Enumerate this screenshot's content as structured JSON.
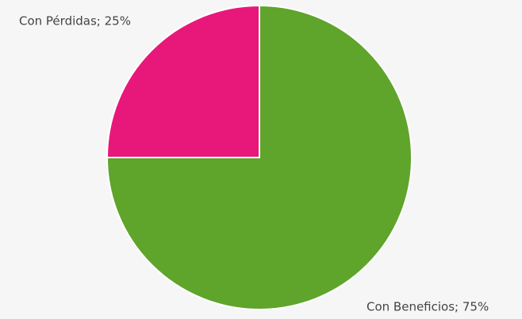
{
  "chart_data": {
    "type": "pie",
    "values": [
      75,
      25
    ],
    "value_labels": [
      "Con Beneficios; 75%",
      "Con Pérdidas; 25%"
    ],
    "colors": [
      "#5fa42b",
      "#e8187b"
    ]
  }
}
